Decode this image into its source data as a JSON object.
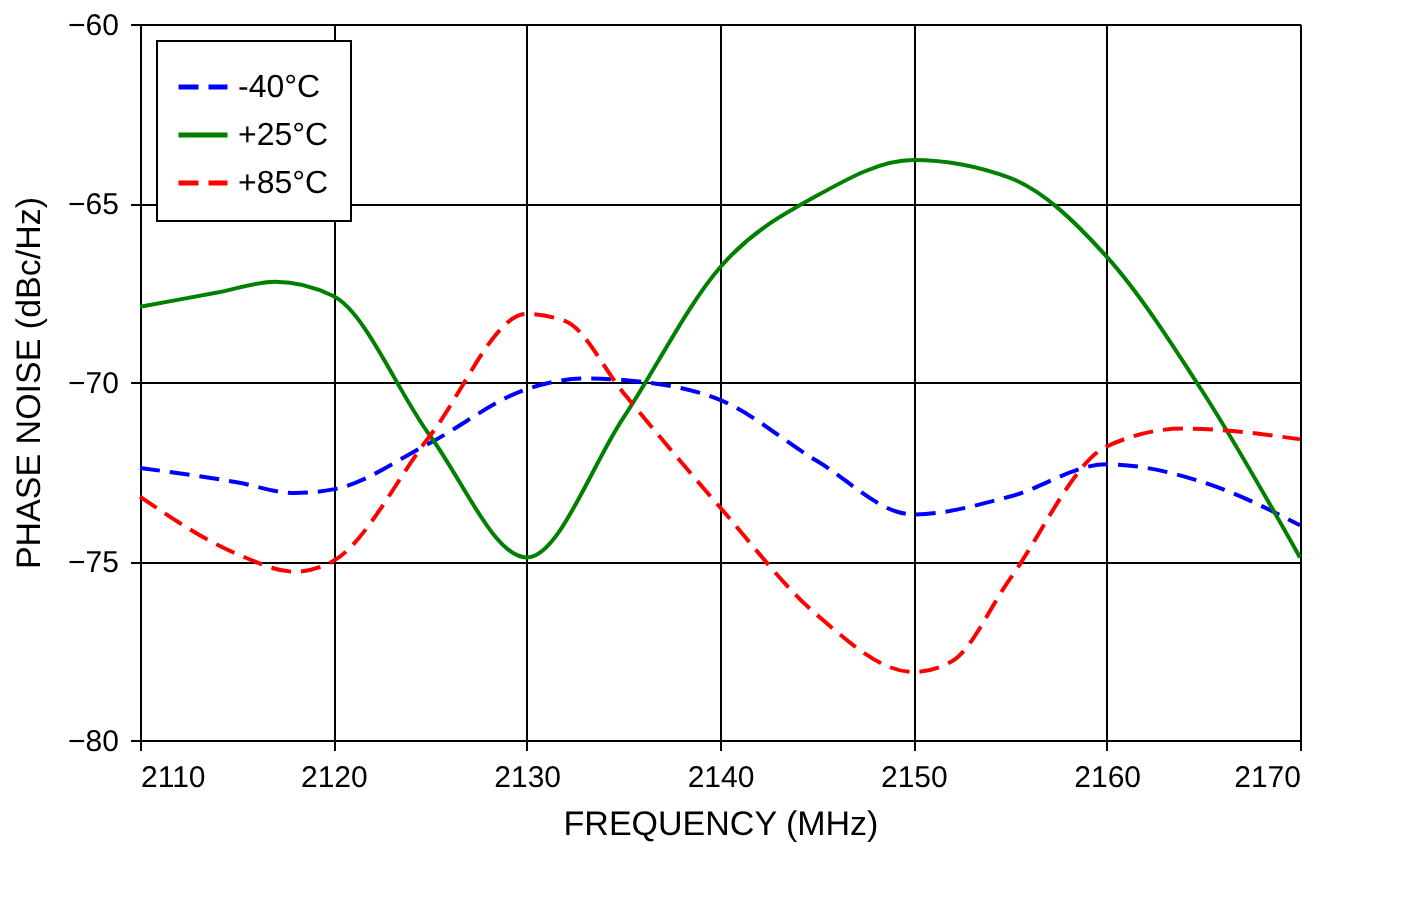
{
  "chart_data": {
    "type": "line",
    "xlabel": "FREQUENCY (MHz)",
    "ylabel": "PHASE NOISE  (dBc/Hz)",
    "xlim": [
      2110,
      2170
    ],
    "xticks": [
      2110,
      2120,
      2130,
      2140,
      2150,
      2160,
      2170
    ],
    "ylim": [
      -80,
      -60
    ],
    "yticks": [
      -80,
      -75,
      -70,
      -65,
      -60
    ],
    "grid": true,
    "legend": "top left",
    "marker": "none",
    "series": [
      {
        "name": "-40°C",
        "color": "#0000ff",
        "line_style": "dashed",
        "x": [
          2110,
          2115,
          2118,
          2120,
          2125,
          2130,
          2133,
          2136,
          2140,
          2145,
          2150,
          2155,
          2160,
          2165,
          2170
        ],
        "values": [
          -72.4,
          -72.8,
          -73.1,
          -73.0,
          -71.7,
          -70.2,
          -69.9,
          -70.0,
          -70.5,
          -72.2,
          -73.7,
          -73.2,
          -72.3,
          -72.8,
          -74.0
        ]
      },
      {
        "name": "+25°C",
        "color": "#008000",
        "line_style": "solid",
        "x": [
          2110,
          2114,
          2117,
          2120,
          2125,
          2130,
          2135,
          2140,
          2145,
          2150,
          2155,
          2160,
          2165,
          2170
        ],
        "values": [
          -67.9,
          -67.5,
          -67.2,
          -67.6,
          -71.5,
          -74.9,
          -71.0,
          -66.8,
          -64.8,
          -63.8,
          -64.3,
          -66.5,
          -70.3,
          -74.9
        ]
      },
      {
        "name": "+85°C",
        "color": "#ff0000",
        "line_style": "dashed",
        "x": [
          2110,
          2115,
          2118,
          2120,
          2125,
          2130,
          2132,
          2135,
          2140,
          2145,
          2150,
          2152,
          2155,
          2160,
          2164,
          2170
        ],
        "values": [
          -73.2,
          -74.8,
          -75.3,
          -75.0,
          -71.5,
          -68.1,
          -68.3,
          -70.3,
          -73.5,
          -76.5,
          -78.1,
          -77.8,
          -75.5,
          -71.8,
          -71.3,
          -71.6
        ]
      }
    ]
  }
}
